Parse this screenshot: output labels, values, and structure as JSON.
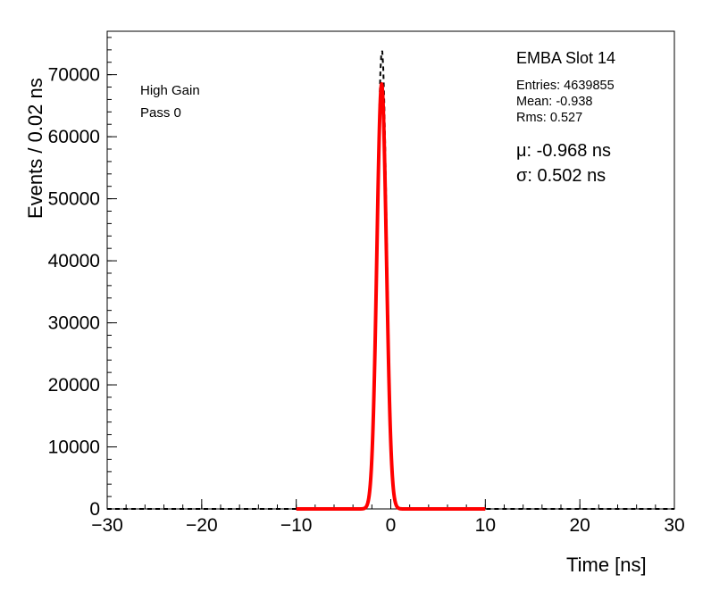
{
  "chart_data": {
    "type": "line",
    "title": "",
    "xlabel": "Time [ns]",
    "ylabel": "Events / 0.02 ns",
    "xlim": [
      -30,
      30
    ],
    "ylim": [
      0,
      77000
    ],
    "x_ticks": [
      -30,
      -20,
      -10,
      0,
      10,
      20,
      30
    ],
    "x_tick_labels": [
      "−30",
      "−20",
      "−10",
      "0",
      "10",
      "20",
      "30"
    ],
    "x_minor_step": 2,
    "y_ticks": [
      0,
      10000,
      20000,
      30000,
      40000,
      50000,
      60000,
      70000
    ],
    "y_tick_labels": [
      "0",
      "10000",
      "20000",
      "30000",
      "40000",
      "50000",
      "60000",
      "70000"
    ],
    "y_minor_step": 2000,
    "grid": false,
    "legend_position": "none",
    "frame_color": "#000000",
    "series": [
      {
        "name": "timing-histogram",
        "curve": "gaussian",
        "color": "#000000",
        "line_width": 2,
        "dash": "5,4",
        "mean": -0.94,
        "sigma": 0.505,
        "amplitude": 74000,
        "x_range": [
          -30,
          30
        ]
      },
      {
        "name": "gaussian-fit",
        "curve": "gaussian",
        "color": "#ff0000",
        "line_width": 4,
        "dash": "",
        "mean": -0.968,
        "sigma": 0.502,
        "amplitude": 68500,
        "x_range": [
          -10,
          10
        ]
      }
    ]
  },
  "labels": {
    "detector": "EMBA Slot 14",
    "entries": "Entries: 4639855",
    "mean": "Mean: -0.938",
    "rms": "Rms: 0.527",
    "mu": "μ: -0.968 ns",
    "sigma": "σ: 0.502 ns",
    "gain_mode": "High Gain",
    "pass": "Pass 0"
  }
}
